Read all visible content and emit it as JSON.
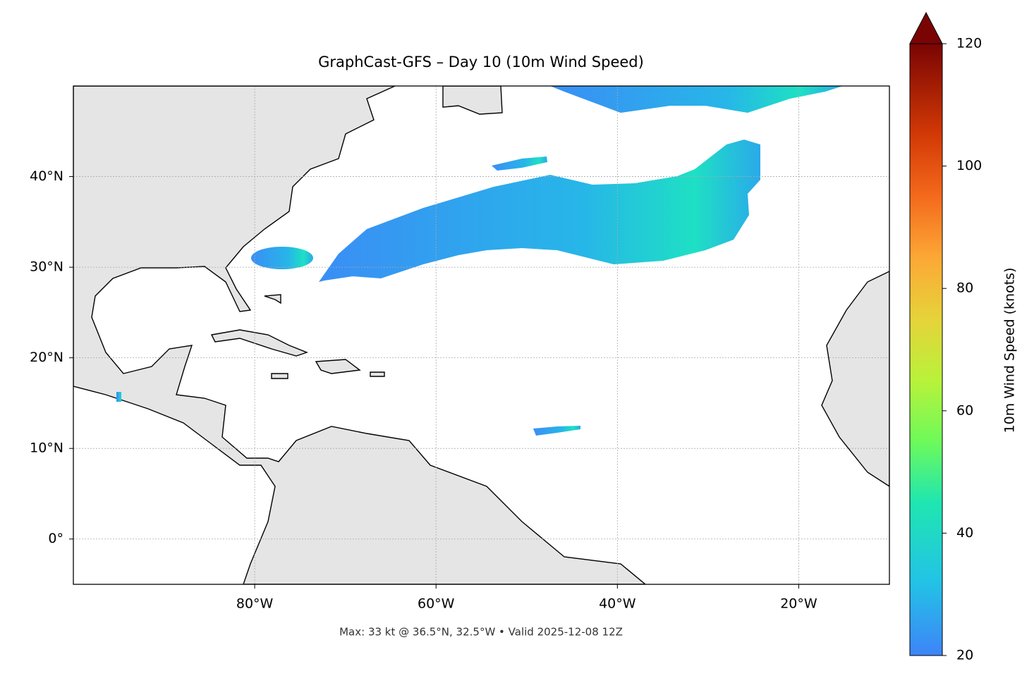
{
  "title": "GraphCast-GFS – Day 10 (10m Wind Speed)",
  "footer": "Max: 33 kt @ 36.5°N, 32.5°W • Valid 2025-12-08 12Z",
  "map": {
    "xlim": [
      -100,
      -10
    ],
    "ylim": [
      -5,
      50
    ],
    "xticks": [
      {
        "value": -80,
        "label": "80°W"
      },
      {
        "value": -60,
        "label": "60°W"
      },
      {
        "value": -40,
        "label": "40°W"
      },
      {
        "value": -20,
        "label": "20°W"
      }
    ],
    "yticks": [
      {
        "value": 0,
        "label": "0°"
      },
      {
        "value": 10,
        "label": "10°N"
      },
      {
        "value": 20,
        "label": "20°N"
      },
      {
        "value": 30,
        "label": "30°N"
      },
      {
        "value": 40,
        "label": "40°N"
      }
    ],
    "grid": true
  },
  "colorbar": {
    "label": "10m Wind Speed (knots)",
    "lim": [
      20,
      120
    ],
    "ticks": [
      20,
      40,
      60,
      80,
      100,
      120
    ]
  }
}
